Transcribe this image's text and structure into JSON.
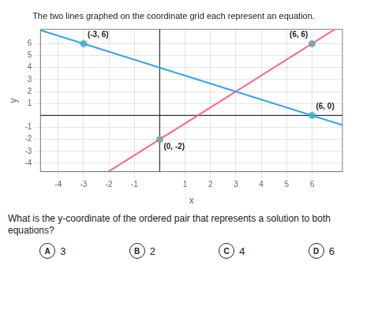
{
  "chart_data": {
    "type": "line",
    "title": "The two lines graphed on the coordinate grid each represent an equation.",
    "x_label": "x",
    "y_label": "y",
    "series": [
      {
        "type": "line",
        "line_style": "solid",
        "x": [
          -4.7,
          7.2
        ],
        "values": [
          7.133333,
          -0.8
        ]
      },
      {
        "type": "line",
        "line_style": "solid",
        "x": [
          -2.025,
          6.9
        ],
        "values": [
          -4.7,
          7.2
        ]
      },
      {
        "type": "scatter",
        "marker": "circle",
        "x": [
          -3,
          6,
          0,
          6
        ],
        "values": [
          6,
          0,
          -2,
          6
        ]
      }
    ],
    "annotations": [
      {
        "text": "(-3, 6)",
        "x": -3,
        "y": 6
      },
      {
        "text": "(6, 6)",
        "x": 6,
        "y": 6
      },
      {
        "text": "(6, 0)",
        "x": 6,
        "y": 0
      },
      {
        "text": "(0, -2)",
        "x": 0,
        "y": -2
      }
    ],
    "question": "What is the y-coordinate of the ordered pair that represents a solution to both equations?",
    "choices": [
      {
        "label": "A",
        "text": "3"
      },
      {
        "label": "B",
        "text": "2"
      },
      {
        "label": "C",
        "text": "4"
      },
      {
        "label": "D",
        "text": "6"
      }
    ],
    "xlim": [
      -4.7,
      7.2
    ],
    "ylim": [
      -4.7,
      7.2
    ],
    "xticks": [
      -4,
      -3,
      -2,
      -1,
      1,
      2,
      3,
      4,
      5,
      6
    ],
    "yticks": [
      -4,
      -3,
      -2,
      -1,
      1,
      2,
      3,
      4,
      5,
      6
    ],
    "grid": true
  }
}
